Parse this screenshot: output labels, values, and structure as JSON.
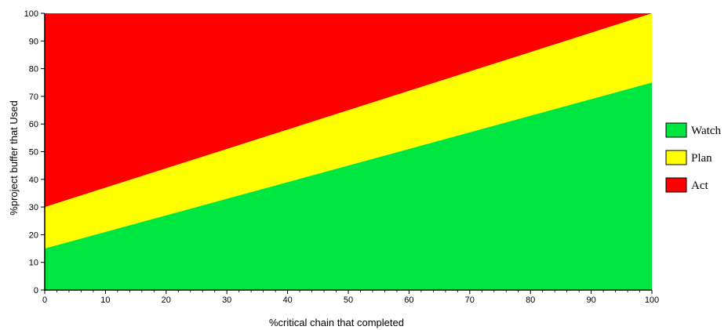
{
  "chart_data": {
    "type": "area",
    "xlabel": "%critical chain that completed",
    "ylabel": "%project buffer that Used",
    "xlim": [
      0,
      100
    ],
    "ylim": [
      0,
      100
    ],
    "x_ticks": [
      0,
      10,
      20,
      30,
      40,
      50,
      60,
      70,
      80,
      90,
      100
    ],
    "y_ticks": [
      0,
      10,
      20,
      30,
      40,
      50,
      60,
      70,
      80,
      90,
      100
    ],
    "grid": false,
    "legend_position": "right",
    "series": [
      {
        "name": "Watch",
        "color": "#00e640",
        "lower": [
          [
            0,
            0
          ],
          [
            100,
            0
          ]
        ],
        "upper": [
          [
            0,
            15
          ],
          [
            100,
            75
          ]
        ]
      },
      {
        "name": "Plan",
        "color": "#ffff00",
        "lower": [
          [
            0,
            15
          ],
          [
            100,
            75
          ]
        ],
        "upper": [
          [
            0,
            30
          ],
          [
            100,
            100
          ]
        ]
      },
      {
        "name": "Act",
        "color": "#ff0000",
        "lower": [
          [
            0,
            30
          ],
          [
            100,
            100
          ]
        ],
        "upper": [
          [
            0,
            100
          ],
          [
            100,
            100
          ]
        ]
      }
    ]
  }
}
